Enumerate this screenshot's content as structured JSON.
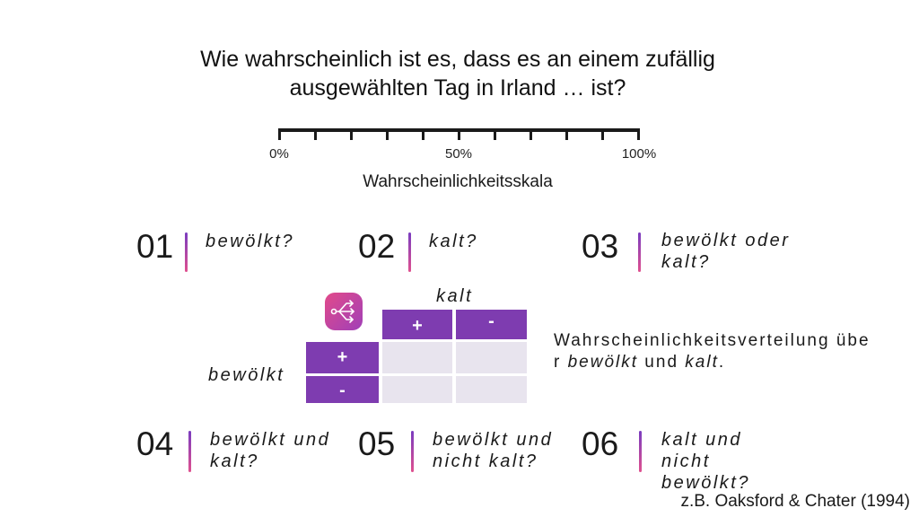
{
  "title": {
    "line1": "Wie wahrscheinlich ist es, dass es an einem zufällig",
    "line2": "ausgewählten Tag in Irland … ist?"
  },
  "scale": {
    "labels": [
      "0%",
      "50%",
      "100%"
    ],
    "title": "Wahrscheinlichkeitsskala"
  },
  "questions": [
    {
      "num": "01",
      "text": "bewölkt?"
    },
    {
      "num": "02",
      "text": "kalt?"
    },
    {
      "num": "03",
      "text": "bewölkt oder kalt?"
    },
    {
      "num": "04",
      "text": "bewölkt und kalt?"
    },
    {
      "num": "05",
      "text": "bewölkt und nicht kalt?"
    },
    {
      "num": "06",
      "text": "kalt und nicht bewölkt?"
    }
  ],
  "table": {
    "col_header": "kalt",
    "row_header": "bewölkt",
    "col_values": [
      "+",
      "-"
    ],
    "row_values": [
      "+",
      "-"
    ]
  },
  "distribution": {
    "part1": "Wahrscheinlichkeitsverteilung über ",
    "em1": "bewölkt",
    "part2": " und ",
    "em2": "kalt",
    "part3": "."
  },
  "citation": "z.B. Oaksford & Chater (1994)",
  "icon": "shuffle-arrows-icon",
  "colors": {
    "accent": "#7e3cb0",
    "pink": "#e0508f",
    "cell": "#e8e4ee"
  }
}
